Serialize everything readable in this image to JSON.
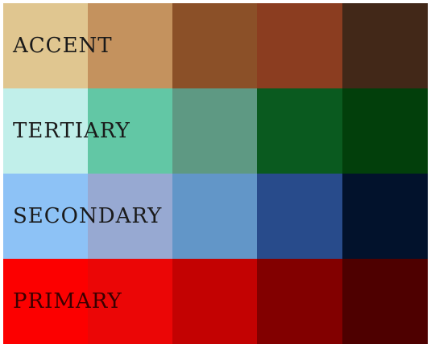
{
  "rows": [
    {
      "label": "ACCENT",
      "colors": [
        "#e0c690",
        "#c4925e",
        "#8b5028",
        "#8b3d20",
        "#422818"
      ]
    },
    {
      "label": "TERTIARY",
      "colors": [
        "#c1efea",
        "#62c7a5",
        "#5e9983",
        "#0a5a1f",
        "#023f0b"
      ]
    },
    {
      "label": "SECONDARY",
      "colors": [
        "#8dc2f6",
        "#97a9d2",
        "#6296c8",
        "#284b8b",
        "#02122c"
      ]
    },
    {
      "label": "PRIMARY",
      "colors": [
        "#fc0000",
        "#eb0606",
        "#c30202",
        "#820000",
        "#4e0000"
      ]
    }
  ]
}
